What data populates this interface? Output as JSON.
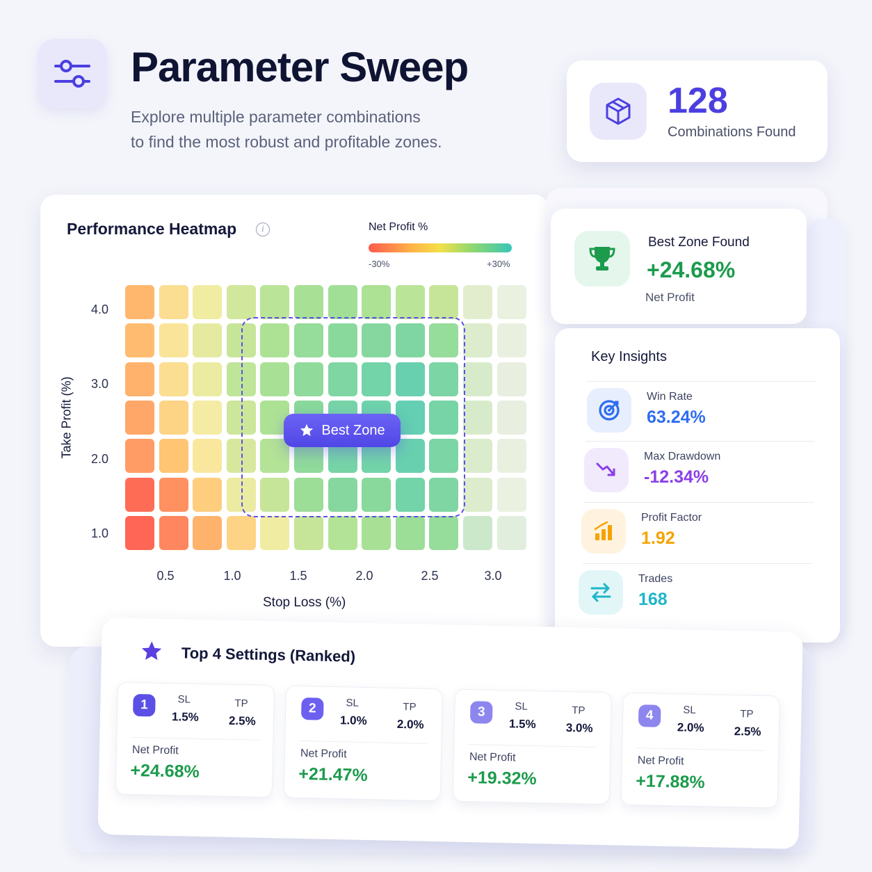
{
  "header": {
    "title": "Parameter Sweep",
    "subtitle_line1": "Explore multiple parameter combinations",
    "subtitle_line2": "to find the most robust and profitable zones.",
    "icon": "sliders-icon"
  },
  "combinations": {
    "count": "128",
    "label": "Combinations Found",
    "icon": "cube-icon"
  },
  "heatmap": {
    "title": "Performance Heatmap",
    "legend_title": "Net Profit %",
    "legend_min": "-30%",
    "legend_max": "+30%",
    "best_zone_label": "Best Zone"
  },
  "chart_data": {
    "type": "heatmap",
    "title": "Performance Heatmap",
    "xlabel": "Stop Loss (%)",
    "ylabel": "Take Profit (%)",
    "x_ticks": [
      "0.5",
      "1.0",
      "1.5",
      "2.0",
      "2.5",
      "3.0"
    ],
    "y_ticks": [
      "4.0",
      "3.0",
      "2.0",
      "1.0"
    ],
    "colorbar": {
      "label": "Net Profit %",
      "min": -30,
      "max": 30
    },
    "rows": 7,
    "cols": 12,
    "values": [
      [
        -15,
        -5,
        2,
        8,
        12,
        15,
        16,
        14,
        12,
        10,
        8,
        6
      ],
      [
        -14,
        -3,
        4,
        10,
        14,
        18,
        20,
        21,
        22,
        18,
        10,
        7
      ],
      [
        -16,
        -5,
        3,
        11,
        15,
        19,
        22,
        25,
        27,
        23,
        12,
        8
      ],
      [
        -18,
        -8,
        1,
        9,
        14,
        20,
        24,
        26,
        28,
        24,
        12,
        8
      ],
      [
        -20,
        -12,
        -2,
        7,
        13,
        19,
        24,
        25,
        27,
        23,
        11,
        7
      ],
      [
        -28,
        -22,
        -10,
        3,
        10,
        17,
        21,
        20,
        25,
        22,
        10,
        6
      ],
      [
        -29,
        -24,
        -16,
        -8,
        2,
        10,
        13,
        15,
        17,
        18,
        16,
        12
      ]
    ],
    "colors": {
      "low": "#ff5a4e",
      "mid_low": "#ffb347",
      "mid": "#f3e04a",
      "mid_high": "#8fd86e",
      "high": "#38c6b8",
      "neutral": "#e9edf2"
    }
  },
  "best_zone": {
    "title": "Best Zone Found",
    "value": "+24.68%",
    "sub": "Net Profit",
    "icon": "trophy-icon"
  },
  "insights": {
    "title": "Key Insights",
    "items": [
      {
        "label": "Win Rate",
        "value": "63.24%",
        "color": "#2f6df0",
        "bg": "#e7eefd",
        "icon": "target-icon"
      },
      {
        "label": "Max Drawdown",
        "value": "-12.34%",
        "color": "#8a3fe8",
        "bg": "#f1eafd",
        "icon": "trend-down-icon"
      },
      {
        "label": "Profit Factor",
        "value": "1.92",
        "color": "#f5a300",
        "bg": "#fff3df",
        "icon": "bar-chart-icon"
      },
      {
        "label": "Trades",
        "value": "168",
        "color": "#1fb5c8",
        "bg": "#e2f6f8",
        "icon": "swap-arrows-icon"
      }
    ]
  },
  "top4": {
    "title": "Top 4 Settings (Ranked)",
    "sl_label": "SL",
    "tp_label": "TP",
    "np_label": "Net Profit",
    "items": [
      {
        "rank": "1",
        "sl": "1.5%",
        "tp": "2.5%",
        "np": "+24.68%",
        "badge": "#5b4fe6"
      },
      {
        "rank": "2",
        "sl": "1.0%",
        "tp": "2.0%",
        "np": "+21.47%",
        "badge": "#6d5ff0"
      },
      {
        "rank": "3",
        "sl": "1.5%",
        "tp": "3.0%",
        "np": "+19.32%",
        "badge": "#8d86ee"
      },
      {
        "rank": "4",
        "sl": "2.0%",
        "tp": "2.5%",
        "np": "+17.88%",
        "badge": "#8d86ee"
      }
    ]
  }
}
